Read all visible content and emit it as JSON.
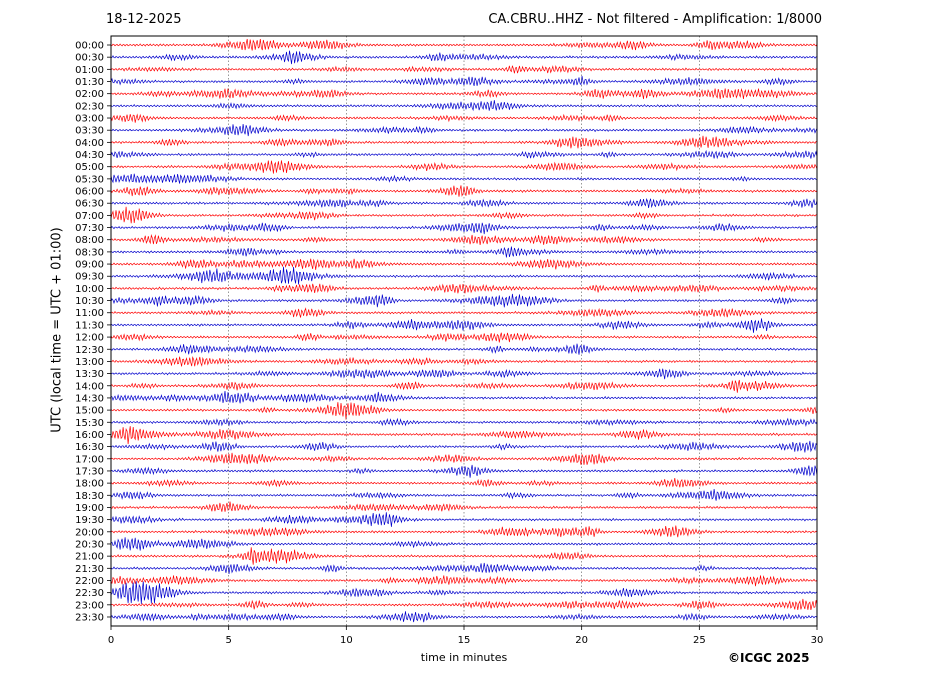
{
  "header": {
    "date": "18-12-2025",
    "station_info": "CA.CBRU..HHZ - Not filtered - Amplification: 1/8000"
  },
  "copyright": "©ICGC 2025",
  "colors": {
    "trace_a": "#ff0000",
    "trace_b": "#0000cc",
    "grid": "#555555"
  },
  "chart_data": {
    "type": "line",
    "xlabel": "time in minutes",
    "ylabel": "UTC (local time = UTC + 01:00)",
    "xlim": [
      0,
      30
    ],
    "x_ticks": [
      "0",
      "5",
      "10",
      "15",
      "20",
      "25",
      "30"
    ],
    "y_ticks": [
      "00:00",
      "00:30",
      "01:00",
      "01:30",
      "02:00",
      "02:30",
      "03:00",
      "03:30",
      "04:00",
      "04:30",
      "05:00",
      "05:30",
      "06:00",
      "06:30",
      "07:00",
      "07:30",
      "08:00",
      "08:30",
      "09:00",
      "09:30",
      "10:00",
      "10:30",
      "11:00",
      "11:30",
      "12:00",
      "12:30",
      "13:00",
      "13:30",
      "14:00",
      "14:30",
      "15:00",
      "15:30",
      "16:00",
      "16:30",
      "17:00",
      "17:30",
      "18:00",
      "18:30",
      "19:00",
      "19:30",
      "20:00",
      "20:30",
      "21:00",
      "21:30",
      "22:00",
      "22:30",
      "23:00",
      "23:30"
    ],
    "grid": true,
    "series_colors_alternate": [
      "#ff0000",
      "#0000cc"
    ]
  }
}
